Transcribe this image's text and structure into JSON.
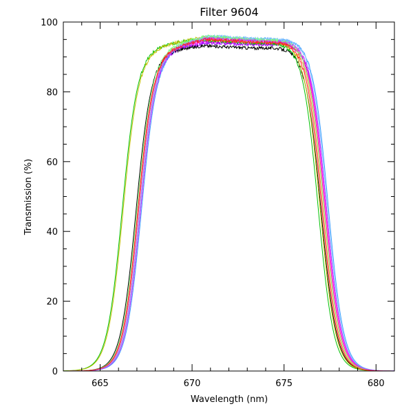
{
  "chart_data": {
    "type": "line",
    "title": "Filter 9604",
    "xlabel": "Wavelength (nm)",
    "ylabel": "Transmission (%)",
    "xlim": [
      663,
      681
    ],
    "ylim": [
      0,
      100
    ],
    "xticks": [
      665,
      670,
      675,
      680
    ],
    "yticks": [
      0,
      20,
      40,
      60,
      80,
      100
    ],
    "grid": false,
    "legend": "none",
    "series": [
      {
        "color": "#ff00ff",
        "rise50": 667.15,
        "fall50": 677.25,
        "plateau": [
          92.0,
          94.5,
          93.8,
          94.2
        ]
      },
      {
        "color": "#a000ff",
        "rise50": 667.2,
        "fall50": 677.3,
        "plateau": [
          92.0,
          94.0,
          93.5,
          94.0
        ]
      },
      {
        "color": "#000000",
        "rise50": 666.95,
        "fall50": 677.0,
        "plateau": [
          91.5,
          93.2,
          92.5,
          93.0
        ]
      },
      {
        "color": "#00c000",
        "rise50": 666.2,
        "fall50": 676.85,
        "plateau": [
          92.3,
          95.0,
          94.0,
          94.2
        ]
      },
      {
        "color": "#c0c000",
        "rise50": 666.25,
        "fall50": 676.95,
        "plateau": [
          92.0,
          95.3,
          94.3,
          94.4
        ]
      },
      {
        "color": "#ff8040",
        "rise50": 667.05,
        "fall50": 677.1,
        "plateau": [
          91.8,
          95.6,
          94.8,
          94.8
        ]
      },
      {
        "color": "#40a0ff",
        "rise50": 667.25,
        "fall50": 677.4,
        "plateau": [
          92.0,
          95.8,
          95.0,
          95.0
        ]
      },
      {
        "color": "#ff4080",
        "rise50": 667.1,
        "fall50": 677.2,
        "plateau": [
          91.9,
          95.4,
          94.6,
          94.6
        ]
      },
      {
        "color": "#80c0ff",
        "rise50": 667.15,
        "fall50": 677.35,
        "plateau": [
          92.0,
          96.0,
          95.2,
          95.1
        ]
      },
      {
        "color": "#80ff80",
        "rise50": 667.0,
        "fall50": 677.15,
        "plateau": [
          92.0,
          96.0,
          95.0,
          94.9
        ]
      },
      {
        "color": "#c040ff",
        "rise50": 667.2,
        "fall50": 677.3,
        "plateau": [
          92.0,
          95.2,
          94.5,
          94.5
        ]
      },
      {
        "color": "#ff2020",
        "rise50": 667.05,
        "fall50": 677.05,
        "plateau": [
          91.8,
          95.0,
          94.2,
          94.3
        ]
      }
    ]
  }
}
